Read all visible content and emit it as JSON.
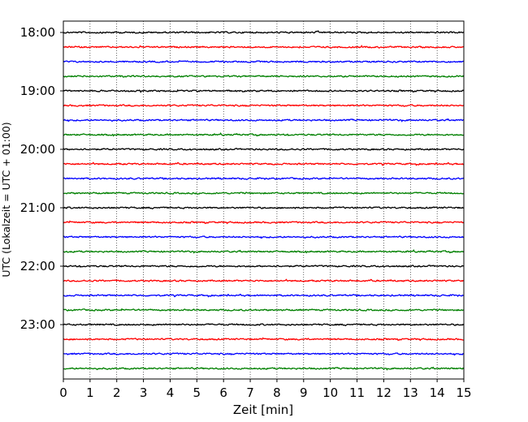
{
  "chart_data": {
    "type": "line",
    "title": "",
    "xlabel": "Zeit  [min]",
    "ylabel": "UTC (Lokalzeit = UTC + 01:00)",
    "xlim": [
      0,
      15
    ],
    "x_ticks": [
      "0",
      "1",
      "2",
      "3",
      "4",
      "5",
      "6",
      "7",
      "8",
      "9",
      "10",
      "11",
      "12",
      "13",
      "14",
      "15"
    ],
    "y_tick_labels": [
      "18:00",
      "19:00",
      "20:00",
      "21:00",
      "22:00",
      "23:00"
    ],
    "grid": "vertical dotted lines at each minute",
    "trace_colors": [
      "#000000",
      "#ff0000",
      "#0000ff",
      "#008000"
    ],
    "traces": [
      {
        "start": "18:00",
        "color": "#000000"
      },
      {
        "start": "18:15",
        "color": "#ff0000"
      },
      {
        "start": "18:30",
        "color": "#0000ff"
      },
      {
        "start": "18:45",
        "color": "#008000"
      },
      {
        "start": "19:00",
        "color": "#000000"
      },
      {
        "start": "19:15",
        "color": "#ff0000"
      },
      {
        "start": "19:30",
        "color": "#0000ff"
      },
      {
        "start": "19:45",
        "color": "#008000"
      },
      {
        "start": "20:00",
        "color": "#000000"
      },
      {
        "start": "20:15",
        "color": "#ff0000"
      },
      {
        "start": "20:30",
        "color": "#0000ff"
      },
      {
        "start": "20:45",
        "color": "#008000"
      },
      {
        "start": "21:00",
        "color": "#000000"
      },
      {
        "start": "21:15",
        "color": "#ff0000"
      },
      {
        "start": "21:30",
        "color": "#0000ff"
      },
      {
        "start": "21:45",
        "color": "#008000"
      },
      {
        "start": "22:00",
        "color": "#000000"
      },
      {
        "start": "22:15",
        "color": "#ff0000"
      },
      {
        "start": "22:30",
        "color": "#0000ff"
      },
      {
        "start": "22:45",
        "color": "#008000"
      },
      {
        "start": "23:00",
        "color": "#000000"
      },
      {
        "start": "23:15",
        "color": "#ff0000"
      },
      {
        "start": "23:30",
        "color": "#0000ff"
      },
      {
        "start": "23:45",
        "color": "#008000"
      }
    ]
  }
}
